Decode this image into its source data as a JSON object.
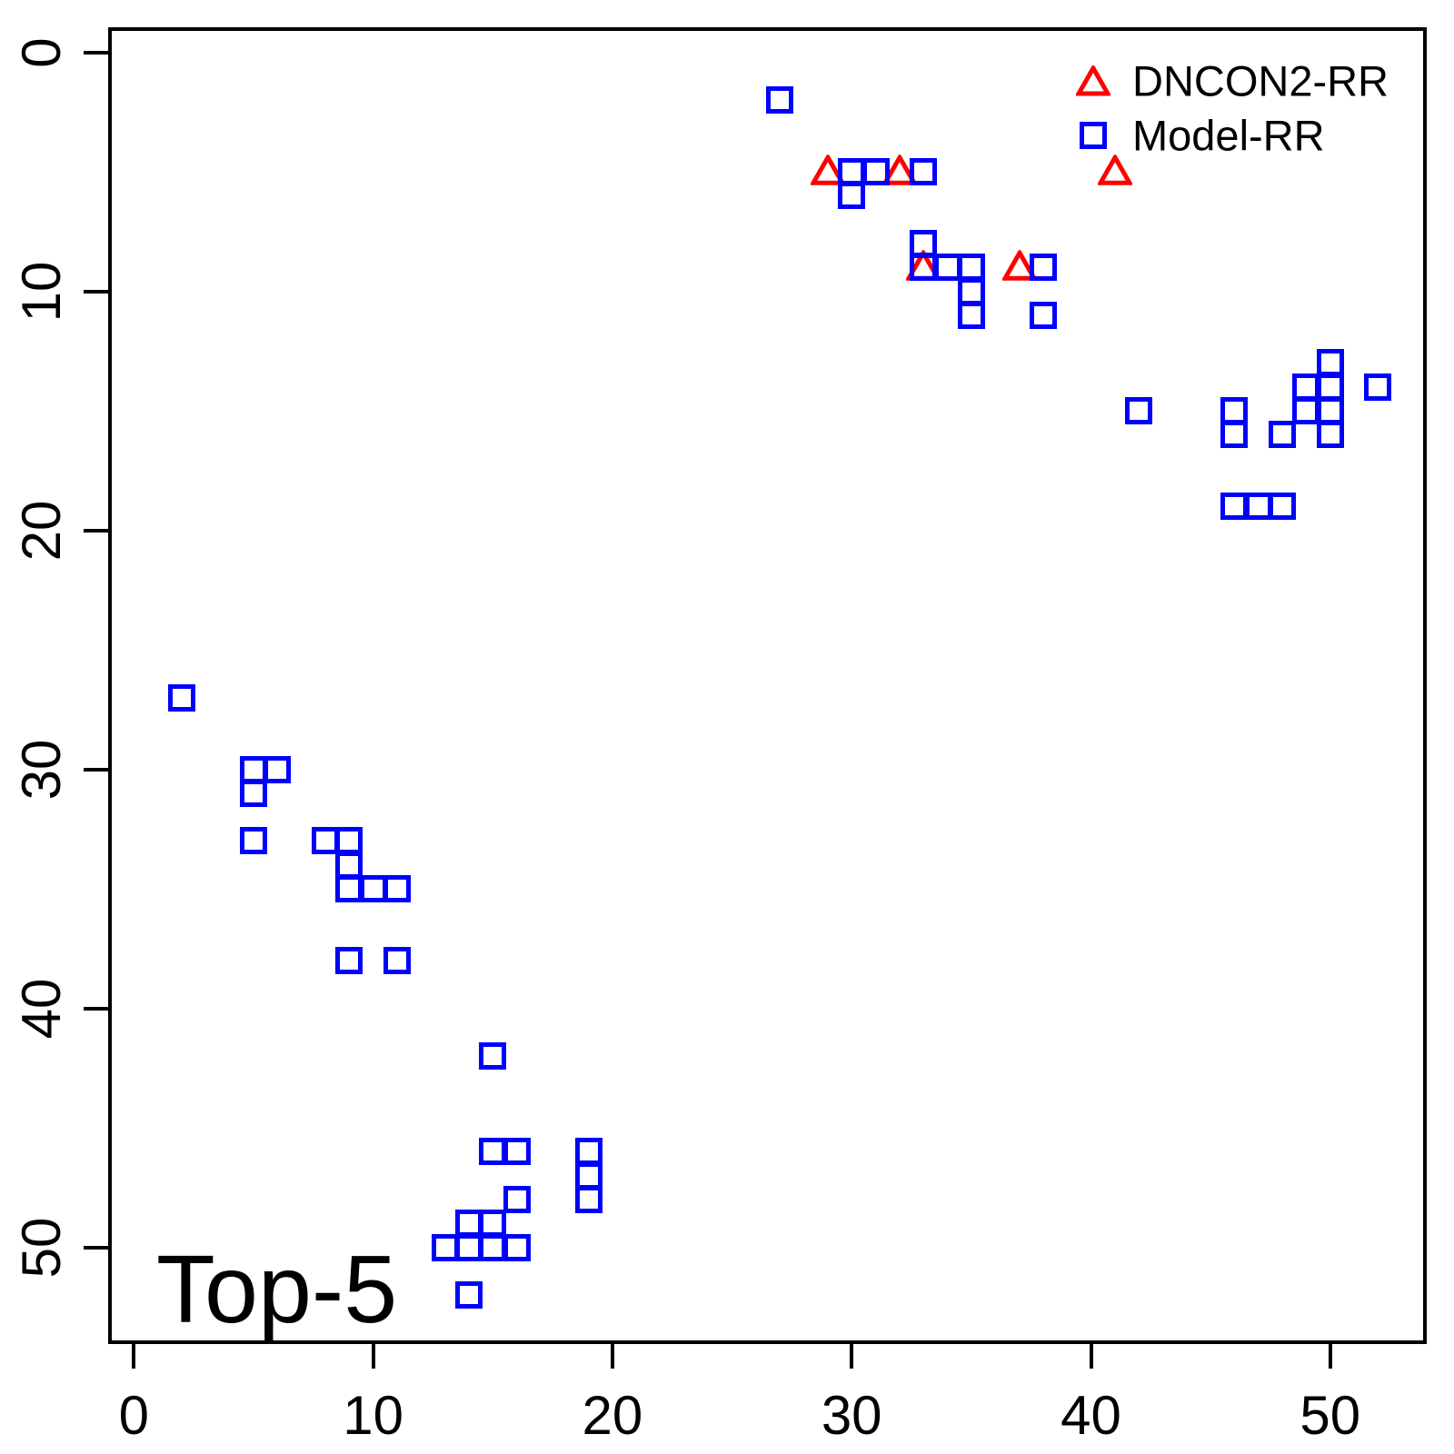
{
  "title": "Top-5",
  "legend": {
    "items": [
      {
        "label": "DNCON2-RR",
        "symbol": "triangle",
        "color": "#ff0000"
      },
      {
        "label": "Model-RR",
        "symbol": "square",
        "color": "#0000ff"
      }
    ],
    "position": "top-right"
  },
  "axes": {
    "x": {
      "ticks": [
        "0",
        "10",
        "20",
        "30",
        "40",
        "50"
      ],
      "tick_values": [
        0,
        10,
        20,
        30,
        40,
        50
      ]
    },
    "y": {
      "ticks": [
        "0",
        "10",
        "20",
        "30",
        "40",
        "50"
      ],
      "tick_values": [
        0,
        10,
        20,
        30,
        40,
        50
      ],
      "reversed": true
    }
  },
  "chart_data": {
    "type": "scatter",
    "title": "Top-5",
    "xlabel": "",
    "ylabel": "",
    "xlim": [
      -1,
      54
    ],
    "ylim_top_to_bottom": [
      -1,
      54
    ],
    "grid": false,
    "legend_position": "top-right",
    "series": [
      {
        "name": "DNCON2-RR",
        "marker": "open-triangle",
        "color": "#ff0000",
        "points": [
          [
            29,
            5
          ],
          [
            32,
            5
          ],
          [
            41,
            5
          ],
          [
            33,
            9
          ],
          [
            37,
            9
          ]
        ]
      },
      {
        "name": "Model-RR",
        "marker": "open-square",
        "color": "#0000ff",
        "points": [
          [
            27,
            2
          ],
          [
            30,
            5
          ],
          [
            31,
            5
          ],
          [
            33,
            5
          ],
          [
            30,
            6
          ],
          [
            33,
            8
          ],
          [
            33,
            9
          ],
          [
            34,
            9
          ],
          [
            35,
            9
          ],
          [
            35,
            10
          ],
          [
            35,
            11
          ],
          [
            38,
            9
          ],
          [
            38,
            11
          ],
          [
            50,
            13
          ],
          [
            49,
            14
          ],
          [
            50,
            14
          ],
          [
            52,
            14
          ],
          [
            42,
            15
          ],
          [
            46,
            15
          ],
          [
            49,
            15
          ],
          [
            50,
            15
          ],
          [
            46,
            16
          ],
          [
            48,
            16
          ],
          [
            50,
            16
          ],
          [
            46,
            19
          ],
          [
            47,
            19
          ],
          [
            48,
            19
          ],
          [
            2,
            27
          ],
          [
            5,
            30
          ],
          [
            6,
            30
          ],
          [
            5,
            31
          ],
          [
            5,
            33
          ],
          [
            8,
            33
          ],
          [
            9,
            33
          ],
          [
            9,
            34
          ],
          [
            9,
            35
          ],
          [
            10,
            35
          ],
          [
            11,
            35
          ],
          [
            9,
            38
          ],
          [
            11,
            38
          ],
          [
            15,
            42
          ],
          [
            15,
            46
          ],
          [
            16,
            46
          ],
          [
            19,
            46
          ],
          [
            19,
            47
          ],
          [
            19,
            48
          ],
          [
            16,
            48
          ],
          [
            14,
            49
          ],
          [
            15,
            49
          ],
          [
            13,
            50
          ],
          [
            14,
            50
          ],
          [
            15,
            50
          ],
          [
            16,
            50
          ],
          [
            14,
            52
          ]
        ]
      }
    ]
  }
}
